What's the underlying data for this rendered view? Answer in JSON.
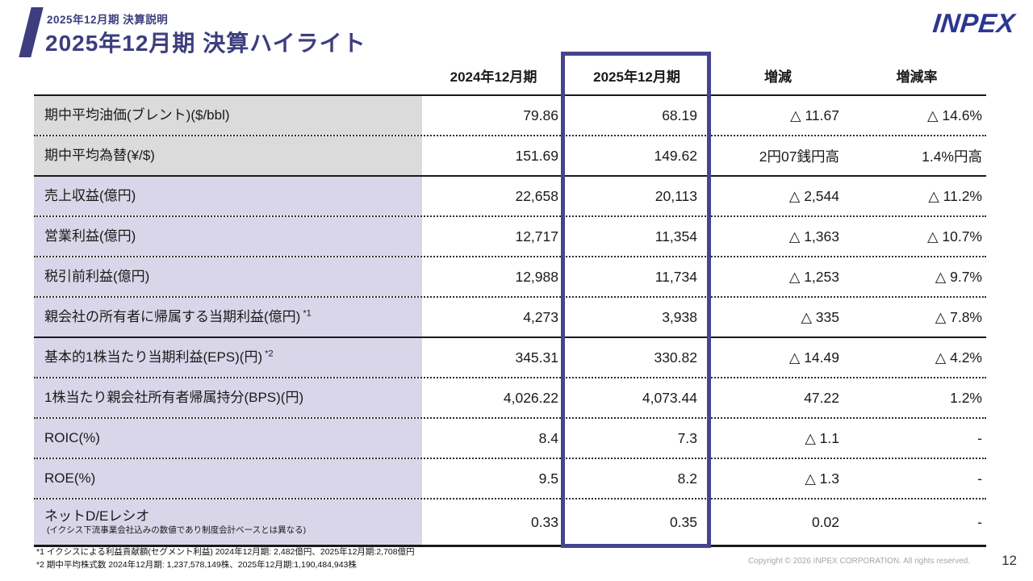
{
  "header": {
    "eyebrow": "2025年12月期  決算説明",
    "title": "2025年12月期  決算ハイライト",
    "logo_text": "INPEX"
  },
  "table": {
    "columns": [
      "2024年12月期",
      "2025年12月期",
      "増減",
      "増減率"
    ],
    "highlighted_column": "2025年12月期",
    "solid_separator_after_rows": [
      1,
      5
    ],
    "rows": [
      {
        "label": "期中平均油価(ブレント)($/bbl)",
        "group": "assumptions",
        "values": [
          "79.86",
          "68.19",
          "△ 11.67",
          "△ 14.6%"
        ]
      },
      {
        "label": "期中平均為替(¥/$)",
        "group": "assumptions",
        "values": [
          "151.69",
          "149.62",
          "2円07銭円高",
          "1.4%円高"
        ]
      },
      {
        "label": "売上収益(億円)",
        "group": "results",
        "values": [
          "22,658",
          "20,113",
          "△ 2,544",
          "△ 11.2%"
        ]
      },
      {
        "label": "営業利益(億円)",
        "group": "results",
        "values": [
          "12,717",
          "11,354",
          "△ 1,363",
          "△ 10.7%"
        ]
      },
      {
        "label": "税引前利益(億円)",
        "group": "results",
        "values": [
          "12,988",
          "11,734",
          "△ 1,253",
          "△ 9.7%"
        ]
      },
      {
        "label": "親会社の所有者に帰属する当期利益(億円)",
        "sup": "*1",
        "group": "results",
        "values": [
          "4,273",
          "3,938",
          "△ 335",
          "△ 7.8%"
        ]
      },
      {
        "label": "基本的1株当たり当期利益(EPS)(円)",
        "sup": "*2",
        "group": "results",
        "values": [
          "345.31",
          "330.82",
          "△ 14.49",
          "△ 4.2%"
        ]
      },
      {
        "label": "1株当たり親会社所有者帰属持分(BPS)(円)",
        "group": "results",
        "values": [
          "4,026.22",
          "4,073.44",
          "47.22",
          "1.2%"
        ]
      },
      {
        "label": "ROIC(%)",
        "group": "results",
        "values": [
          "8.4",
          "7.3",
          "△ 1.1",
          "-"
        ]
      },
      {
        "label": "ROE(%)",
        "group": "results",
        "values": [
          "9.5",
          "8.2",
          "△ 1.3",
          "-"
        ]
      },
      {
        "label": "ネットD/Eレシオ",
        "note": "(イクシス下流事業会社込みの数値であり制度会計ベースとは異なる)",
        "group": "results",
        "values": [
          "0.33",
          "0.35",
          "0.02",
          "-"
        ]
      }
    ]
  },
  "footnotes": [
    "*1 イクシスによる利益貢献額(セグメント利益) 2024年12月期: 2,482億円、2025年12月期:2,708億円",
    "*2 期中平均株式数 2024年12月期: 1,237,578,149株、2025年12月期:1,190,484,943株"
  ],
  "footer": {
    "copyright": "Copyright © 2026 INPEX CORPORATION. All rights reserved.",
    "page_number": "12"
  },
  "colors": {
    "accent_purple": "#3D3D7F",
    "box_purple": "#45458D",
    "logo_blue": "#2B3790",
    "bg_gray": "#DBDBDB",
    "bg_lav": "#D9D6E9"
  }
}
